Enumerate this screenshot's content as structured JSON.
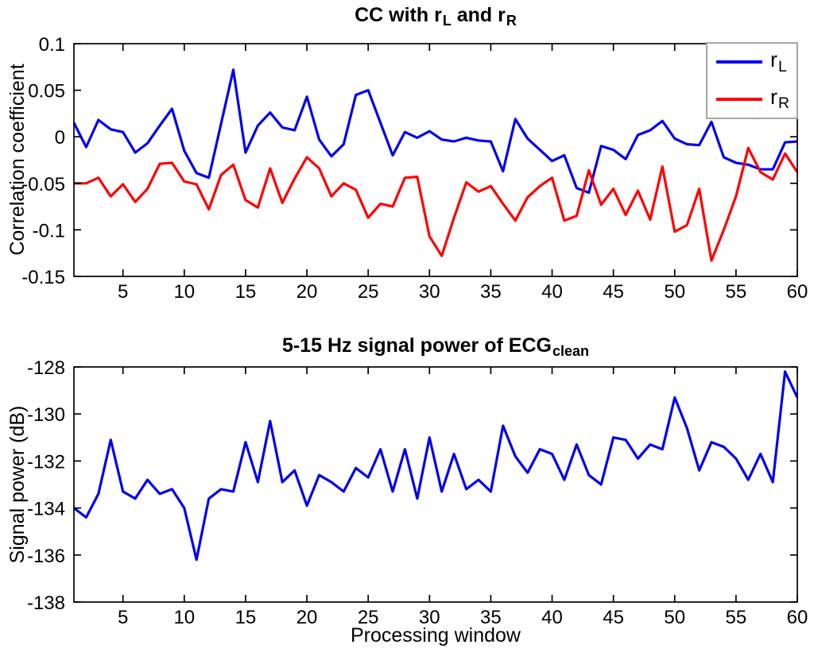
{
  "figure": {
    "background": "#ffffff",
    "axis_color": "#000000",
    "text_color": "#000000",
    "legend_border_color": "#a6a6a6"
  },
  "chart_data": [
    {
      "type": "line",
      "title_plain": "CC with r_L and r_R",
      "title_parts": [
        {
          "t": "CC with r"
        },
        {
          "sub": "L"
        },
        {
          "t": " and r"
        },
        {
          "sub": "R"
        }
      ],
      "xlabel": "",
      "ylabel": "Correlation coefficient",
      "xlim": [
        1,
        60
      ],
      "ylim": [
        -0.15,
        0.1
      ],
      "grid": false,
      "xticks": [
        5,
        10,
        15,
        20,
        25,
        30,
        35,
        40,
        45,
        50,
        55,
        60
      ],
      "yticks": [
        0.1,
        0.05,
        0,
        -0.05,
        -0.1,
        -0.15
      ],
      "ytick_labels": [
        "0.1",
        "0.05",
        "0",
        "-0.05",
        "-0.1",
        "-0.15"
      ],
      "x": [
        1,
        2,
        3,
        4,
        5,
        6,
        7,
        8,
        9,
        10,
        11,
        12,
        13,
        14,
        15,
        16,
        17,
        18,
        19,
        20,
        21,
        22,
        23,
        24,
        25,
        26,
        27,
        28,
        29,
        30,
        31,
        32,
        33,
        34,
        35,
        36,
        37,
        38,
        39,
        40,
        41,
        42,
        43,
        44,
        45,
        46,
        47,
        48,
        49,
        50,
        51,
        52,
        53,
        54,
        55,
        56,
        57,
        58,
        59,
        60
      ],
      "series": [
        {
          "name": "r_L",
          "key": "r-L",
          "color": "#0000ee",
          "values": [
            0.015,
            -0.011,
            0.018,
            0.008,
            0.005,
            -0.017,
            -0.007,
            0.012,
            0.03,
            -0.015,
            -0.039,
            -0.044,
            0.014,
            0.072,
            -0.017,
            0.012,
            0.026,
            0.01,
            0.007,
            0.043,
            -0.003,
            -0.021,
            -0.008,
            0.045,
            0.05,
            0.015,
            -0.02,
            0.005,
            -0.001,
            0.006,
            -0.003,
            -0.005,
            -0.001,
            -0.004,
            -0.005,
            -0.037,
            0.019,
            -0.002,
            -0.014,
            -0.026,
            -0.02,
            -0.055,
            -0.06,
            -0.01,
            -0.014,
            -0.024,
            0.002,
            0.007,
            0.017,
            -0.002,
            -0.008,
            -0.009,
            0.016,
            -0.022,
            -0.028,
            -0.03,
            -0.035,
            -0.035,
            -0.006,
            -0.005
          ]
        },
        {
          "name": "r_R",
          "key": "r-R",
          "color": "#ff0000",
          "values": [
            -0.05,
            -0.05,
            -0.044,
            -0.064,
            -0.051,
            -0.07,
            -0.056,
            -0.029,
            -0.028,
            -0.048,
            -0.051,
            -0.078,
            -0.041,
            -0.03,
            -0.068,
            -0.076,
            -0.034,
            -0.071,
            -0.045,
            -0.022,
            -0.034,
            -0.064,
            -0.05,
            -0.057,
            -0.087,
            -0.072,
            -0.075,
            -0.044,
            -0.043,
            -0.107,
            -0.128,
            -0.087,
            -0.049,
            -0.059,
            -0.053,
            -0.072,
            -0.09,
            -0.065,
            -0.053,
            -0.044,
            -0.09,
            -0.085,
            -0.036,
            -0.073,
            -0.056,
            -0.084,
            -0.058,
            -0.089,
            -0.032,
            -0.102,
            -0.095,
            -0.056,
            -0.133,
            -0.1,
            -0.064,
            -0.012,
            -0.038,
            -0.046,
            -0.018,
            -0.038
          ]
        }
      ],
      "legend": {
        "position": "top-right",
        "entries": [
          {
            "label_main": "r",
            "label_sub": "L",
            "color": "#0000ee"
          },
          {
            "label_main": "r",
            "label_sub": "R",
            "color": "#ff0000"
          }
        ]
      }
    },
    {
      "type": "line",
      "title_plain": "5-15 Hz signal power of ECG_clean",
      "title_parts": [
        {
          "t": "5-15 Hz signal power of ECG"
        },
        {
          "sub": "clean"
        }
      ],
      "xlabel": "Processing window",
      "ylabel": "Signal power (dB)",
      "xlim": [
        1,
        60
      ],
      "ylim": [
        -138,
        -128
      ],
      "grid": false,
      "xticks": [
        5,
        10,
        15,
        20,
        25,
        30,
        35,
        40,
        45,
        50,
        55,
        60
      ],
      "yticks": [
        -128,
        -130,
        -132,
        -134,
        -136,
        -138
      ],
      "ytick_labels": [
        "-128",
        "-130",
        "-132",
        "-134",
        "-136",
        "-138"
      ],
      "x": [
        1,
        2,
        3,
        4,
        5,
        6,
        7,
        8,
        9,
        10,
        11,
        12,
        13,
        14,
        15,
        16,
        17,
        18,
        19,
        20,
        21,
        22,
        23,
        24,
        25,
        26,
        27,
        28,
        29,
        30,
        31,
        32,
        33,
        34,
        35,
        36,
        37,
        38,
        39,
        40,
        41,
        42,
        43,
        44,
        45,
        46,
        47,
        48,
        49,
        50,
        51,
        52,
        53,
        54,
        55,
        56,
        57,
        58,
        59,
        60
      ],
      "series": [
        {
          "name": "ECG_clean signal power",
          "key": "ecg-power",
          "color": "#0000ee",
          "values": [
            -134.0,
            -134.4,
            -133.4,
            -131.1,
            -133.3,
            -133.6,
            -132.8,
            -133.4,
            -133.2,
            -134.0,
            -136.2,
            -133.6,
            -133.2,
            -133.3,
            -131.2,
            -132.9,
            -130.3,
            -132.9,
            -132.4,
            -133.9,
            -132.6,
            -132.9,
            -133.3,
            -132.3,
            -132.7,
            -131.5,
            -133.3,
            -131.5,
            -133.6,
            -131.0,
            -133.3,
            -131.7,
            -133.2,
            -132.8,
            -133.3,
            -130.5,
            -131.8,
            -132.5,
            -131.5,
            -131.7,
            -132.8,
            -131.3,
            -132.6,
            -133.0,
            -131.0,
            -131.1,
            -131.9,
            -131.3,
            -131.5,
            -129.3,
            -130.6,
            -132.4,
            -131.2,
            -131.4,
            -131.9,
            -132.8,
            -131.7,
            -132.9,
            -128.2,
            -129.3
          ]
        }
      ]
    }
  ]
}
